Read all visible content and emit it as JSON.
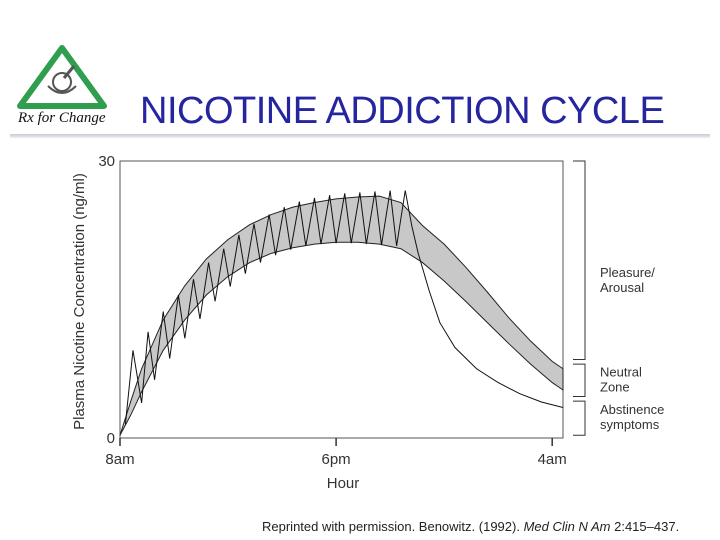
{
  "slide": {
    "title": "NICOTINE ADDICTION CYCLE",
    "logo_text": "Rx for Change",
    "citation": {
      "prefix": "Reprinted with permission. Benowitz. (1992). ",
      "journal": "Med Clin N Am",
      "suffix": " 2:415–437."
    }
  },
  "colors": {
    "title": "#2525a0",
    "band": "#c8c8c8",
    "logo_green": "#2f9e4f"
  },
  "chart_data": {
    "type": "line",
    "title": "",
    "xlabel": "Hour",
    "ylabel": "Plasma Nicotine Concentration (ng/ml)",
    "x_unit": "hours after 8am",
    "xlim": [
      0,
      20.5
    ],
    "ylim": [
      0,
      30
    ],
    "x_ticks": [
      {
        "x": 0,
        "label": "8am"
      },
      {
        "x": 10,
        "label": "6pm"
      },
      {
        "x": 20,
        "label": "4am"
      }
    ],
    "y_ticks": [
      {
        "y": 0,
        "label": "0"
      },
      {
        "y": 30,
        "label": "30"
      }
    ],
    "band": {
      "upper": [
        [
          0,
          0.3
        ],
        [
          0.5,
          4
        ],
        [
          1,
          7.5
        ],
        [
          2,
          12.8
        ],
        [
          3,
          16.5
        ],
        [
          4,
          19.4
        ],
        [
          5,
          21.5
        ],
        [
          6,
          23.1
        ],
        [
          7,
          24.2
        ],
        [
          8,
          25
        ],
        [
          9,
          25.5
        ],
        [
          10,
          25.9
        ],
        [
          11,
          26.1
        ],
        [
          12,
          26.2
        ],
        [
          13,
          25.5
        ],
        [
          14,
          23
        ],
        [
          15,
          21
        ],
        [
          16,
          18.5
        ],
        [
          17,
          15.8
        ],
        [
          18,
          13
        ],
        [
          19,
          10.5
        ],
        [
          20,
          8.3
        ],
        [
          20.5,
          7.5
        ]
      ],
      "lower": [
        [
          0,
          0.3
        ],
        [
          0.5,
          2.5
        ],
        [
          1,
          5
        ],
        [
          2,
          9.5
        ],
        [
          3,
          12.8
        ],
        [
          4,
          15.5
        ],
        [
          5,
          17.5
        ],
        [
          6,
          19
        ],
        [
          7,
          20
        ],
        [
          8,
          20.6
        ],
        [
          9,
          21
        ],
        [
          10,
          21.2
        ],
        [
          11,
          21.2
        ],
        [
          12,
          21
        ],
        [
          13,
          20.5
        ],
        [
          14,
          19
        ],
        [
          15,
          17
        ],
        [
          16,
          14.8
        ],
        [
          17,
          12.5
        ],
        [
          18,
          10.2
        ],
        [
          19,
          8
        ],
        [
          20,
          6
        ],
        [
          20.5,
          5.2
        ]
      ]
    },
    "smoking_peaks": [
      [
        0.6,
        9.5
      ],
      [
        1.3,
        11.5
      ],
      [
        2,
        13.7
      ],
      [
        2.7,
        15.5
      ],
      [
        3.4,
        17.2
      ],
      [
        4.1,
        19
      ],
      [
        4.8,
        20.5
      ],
      [
        5.5,
        22
      ],
      [
        6.2,
        23.2
      ],
      [
        6.9,
        24.2
      ],
      [
        7.6,
        25
      ],
      [
        8.3,
        25.6
      ],
      [
        9,
        26
      ],
      [
        9.7,
        26.3
      ],
      [
        10.4,
        26.5
      ],
      [
        11.1,
        26.6
      ],
      [
        11.8,
        26.7
      ],
      [
        12.5,
        26.8
      ],
      [
        13.2,
        26.8
      ]
    ],
    "smoking_troughs": [
      [
        1,
        3.8
      ],
      [
        1.6,
        6.3
      ],
      [
        2.3,
        8.6
      ],
      [
        3,
        10.8
      ],
      [
        3.7,
        12.9
      ],
      [
        4.4,
        14.8
      ],
      [
        5.1,
        16.4
      ],
      [
        5.8,
        17.8
      ],
      [
        6.5,
        19
      ],
      [
        7.2,
        19.8
      ],
      [
        7.9,
        20.4
      ],
      [
        8.6,
        20.8
      ],
      [
        9.3,
        21
      ],
      [
        10,
        21.1
      ],
      [
        10.7,
        21.1
      ],
      [
        11.4,
        21
      ],
      [
        12.1,
        20.9
      ],
      [
        12.8,
        20.8
      ]
    ],
    "individual_decay": [
      [
        13.2,
        26.8
      ],
      [
        13.5,
        23
      ],
      [
        13.8,
        20
      ],
      [
        14.3,
        16
      ],
      [
        14.8,
        12.5
      ],
      [
        15.5,
        9.8
      ],
      [
        16.5,
        7.5
      ],
      [
        17.5,
        6
      ],
      [
        18.5,
        4.8
      ],
      [
        19.5,
        3.9
      ],
      [
        20.5,
        3.3
      ]
    ],
    "early_trace": [
      [
        0.25,
        1.5
      ],
      [
        0.6,
        9.5
      ]
    ],
    "brackets": [
      {
        "label": "Pleasure/\nArousal",
        "y_from": 8.5,
        "y_to": 30
      },
      {
        "label": "Neutral\nZone",
        "y_from": 4.5,
        "y_to": 8.0
      },
      {
        "label": "Abstinence\nsymptoms",
        "y_from": 0.3,
        "y_to": 4.0
      }
    ]
  }
}
